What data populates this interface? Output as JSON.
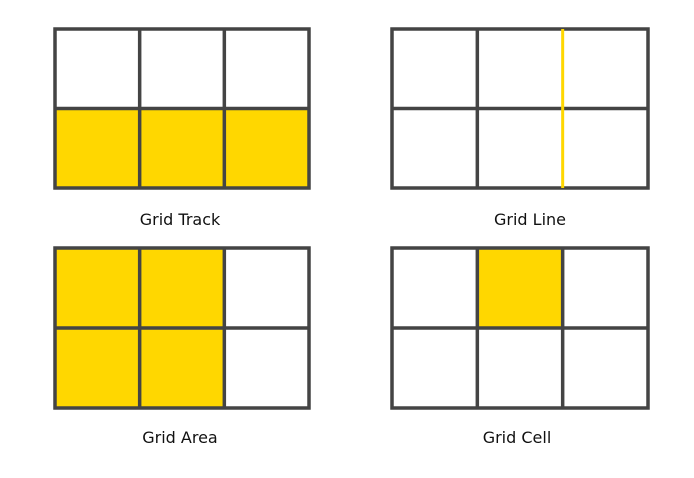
{
  "colors": {
    "highlight": "#FFD700",
    "grid_line": "#444444",
    "cell_background": "#FFFFFF",
    "caption_text": "#111111"
  },
  "panels": [
    {
      "id": "grid-track",
      "caption": "Grid Track",
      "rows": 2,
      "cols": 3,
      "highlighted_cells": [
        [
          1,
          0
        ],
        [
          1,
          1
        ],
        [
          1,
          2
        ]
      ],
      "highlighted_line": null
    },
    {
      "id": "grid-line",
      "caption": "Grid Line",
      "rows": 2,
      "cols": 3,
      "highlighted_cells": [],
      "highlighted_line": {
        "orientation": "vertical",
        "index": 2
      }
    },
    {
      "id": "grid-area",
      "caption": "Grid Area",
      "rows": 2,
      "cols": 3,
      "highlighted_cells": [
        [
          0,
          0
        ],
        [
          0,
          1
        ],
        [
          1,
          0
        ],
        [
          1,
          1
        ]
      ],
      "highlighted_line": null
    },
    {
      "id": "grid-cell",
      "caption": "Grid Cell",
      "rows": 2,
      "cols": 3,
      "highlighted_cells": [
        [
          0,
          1
        ]
      ],
      "highlighted_line": null
    }
  ]
}
